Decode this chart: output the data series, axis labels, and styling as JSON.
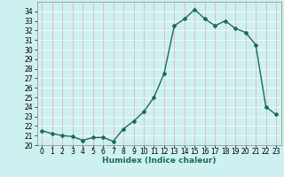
{
  "x": [
    0,
    1,
    2,
    3,
    4,
    5,
    6,
    7,
    8,
    9,
    10,
    11,
    12,
    13,
    14,
    15,
    16,
    17,
    18,
    19,
    20,
    21,
    22,
    23
  ],
  "y": [
    21.5,
    21.2,
    21.0,
    20.9,
    20.5,
    20.8,
    20.8,
    20.4,
    21.7,
    22.5,
    23.5,
    25.0,
    27.5,
    32.5,
    33.2,
    34.2,
    33.2,
    32.5,
    33.0,
    32.2,
    31.8,
    30.5,
    24.0,
    23.2
  ],
  "line_color": "#1a6b5a",
  "marker": "D",
  "marker_size": 2,
  "line_width": 1.0,
  "bg_color": "#cef0f0",
  "grid_color": "#aadddd",
  "xlabel": "Humidex (Indice chaleur)",
  "ylim": [
    20,
    35
  ],
  "xlim": [
    -0.5,
    23.5
  ],
  "yticks": [
    20,
    21,
    22,
    23,
    24,
    25,
    26,
    27,
    28,
    29,
    30,
    31,
    32,
    33,
    34
  ],
  "xticks": [
    0,
    1,
    2,
    3,
    4,
    5,
    6,
    7,
    8,
    9,
    10,
    11,
    12,
    13,
    14,
    15,
    16,
    17,
    18,
    19,
    20,
    21,
    22,
    23
  ],
  "tick_fontsize": 5.5,
  "xlabel_fontsize": 6.5
}
